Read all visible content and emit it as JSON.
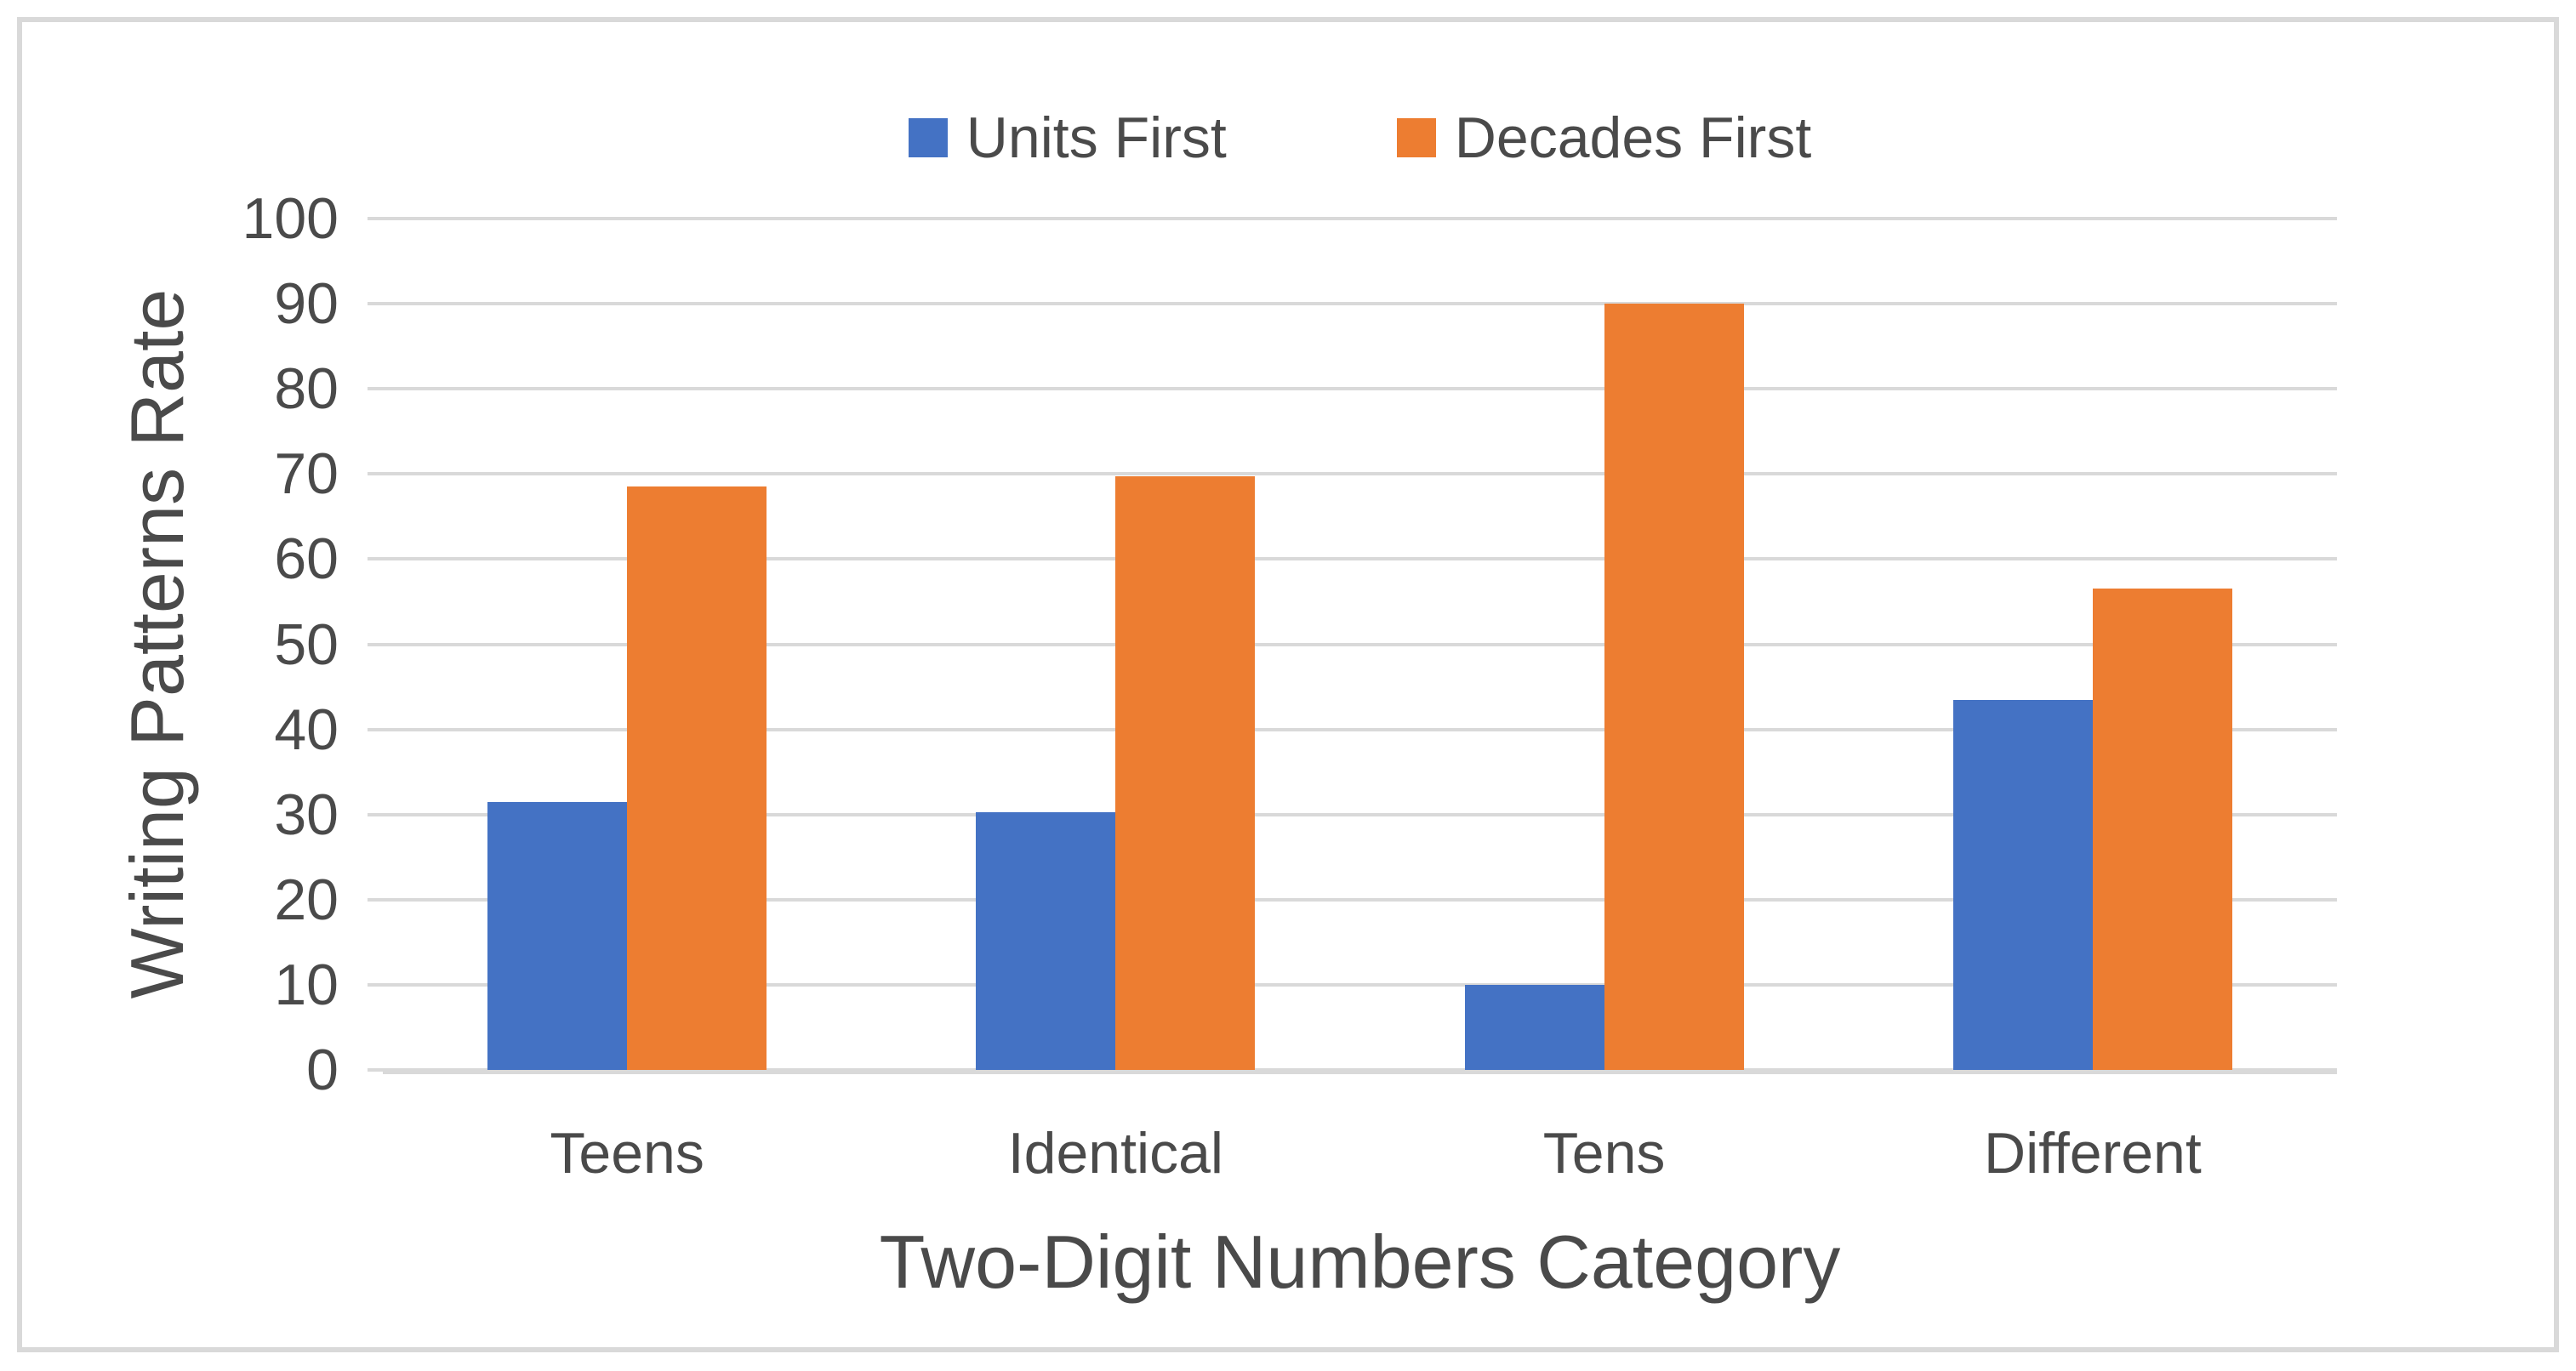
{
  "figure": {
    "background_color": "#ffffff",
    "border_color": "#d9d9d9",
    "gridline_color": "#d9d9d9",
    "text_color": "#4a4a4a"
  },
  "legend": {
    "position": "top-center",
    "items": [
      {
        "label": "Units First",
        "color": "#4472c4",
        "swatch": "square"
      },
      {
        "label": "Decades First",
        "color": "#ed7d31",
        "swatch": "square"
      }
    ]
  },
  "chart_data": {
    "type": "bar",
    "title": "",
    "xlabel": "Two-Digit Numbers Category",
    "ylabel": "Writing Patterns Rate",
    "categories": [
      "Teens",
      "Identical",
      "Tens",
      "Different"
    ],
    "series": [
      {
        "name": "Units First",
        "color": "#4472c4",
        "values": [
          31.5,
          30.3,
          10,
          43.5
        ]
      },
      {
        "name": "Decades First",
        "color": "#ed7d31",
        "values": [
          68.5,
          69.7,
          90,
          56.5
        ]
      }
    ],
    "ylim": [
      0,
      100
    ],
    "ytick_step": 10,
    "yticks": [
      0,
      10,
      20,
      30,
      40,
      50,
      60,
      70,
      80,
      90,
      100
    ],
    "grid": true,
    "legend_position": "top"
  }
}
